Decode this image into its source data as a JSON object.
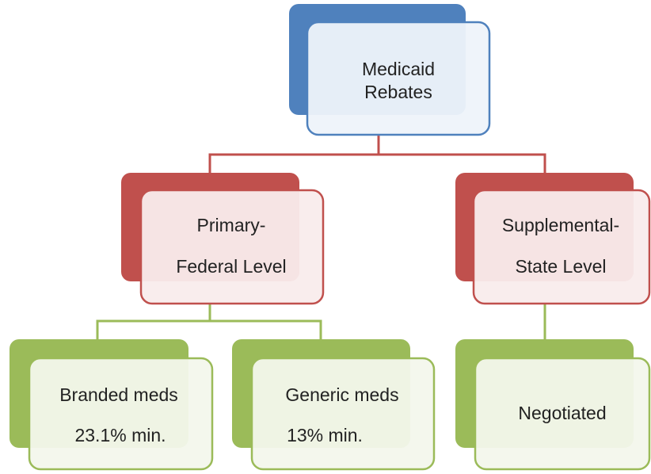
{
  "nodes": [
    {
      "lines": [
        "Medicaid",
        "Rebates"
      ]
    },
    {
      "lines": [
        "Primary-",
        "Federal Level"
      ]
    },
    {
      "lines": [
        "Supplemental-",
        "State Level"
      ]
    },
    {
      "lines": [
        "Branded meds",
        "23.1% min."
      ]
    },
    {
      "lines": [
        "Generic meds",
        "13% min."
      ]
    },
    {
      "lines": [
        "Negotiated"
      ]
    }
  ]
}
